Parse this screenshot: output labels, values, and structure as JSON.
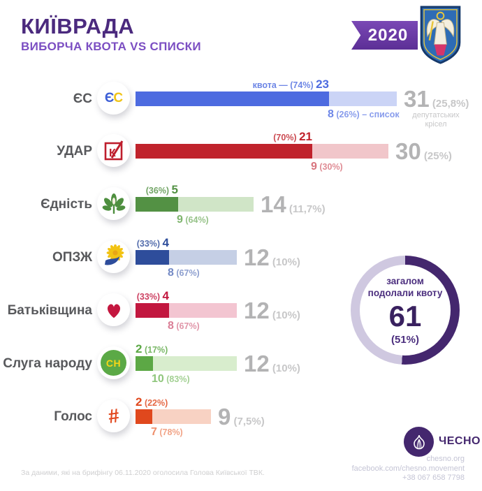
{
  "header": {
    "title": "КИЇВРАДА",
    "subtitle": "ВИБОРЧА КВОТА VS СПИСКИ",
    "year": "2020",
    "emblem": "kyiv-coat-of-arms"
  },
  "colors": {
    "title_purple": "#4B2A7E",
    "subtitle_purple": "#7B4EC2",
    "ribbon_purple": "#63359F",
    "donut_dark": "#44276E",
    "donut_light": "#CFC8E0",
    "total_gray": "#B3B3B4"
  },
  "rows": [
    {
      "party": "ЄС",
      "logo": "es-party-logo",
      "seats": 31,
      "quota_pct_value": 74,
      "top_align": "end",
      "color_dark": "#4D6BE0",
      "color_light": "#CBD4F6",
      "color_mid": "#6E87E8",
      "top_parts": [
        {
          "text": "квота — (74%) ",
          "big": false
        },
        {
          "text": "23",
          "big": true
        }
      ],
      "bottom_parts": [
        {
          "text": "8",
          "big": true
        },
        {
          "text": " (26%) – список",
          "big": false
        }
      ],
      "total": "31",
      "total_pct": "(25,8%)",
      "note": "депутатських крісел"
    },
    {
      "party": "УДАР",
      "logo": "udar-party-logo",
      "seats": 30,
      "quota_pct_value": 70,
      "top_align": "end",
      "color_dark": "#C0232C",
      "color_light": "#F1C6CA",
      "color_mid": "#D8747E",
      "top_parts": [
        {
          "text": "(70%) ",
          "big": false
        },
        {
          "text": "21",
          "big": true
        }
      ],
      "bottom_parts": [
        {
          "text": "9",
          "big": true
        },
        {
          "text": " (30%)",
          "big": false
        }
      ],
      "total": "30",
      "total_pct": "(25%)",
      "note": ""
    },
    {
      "party": "Єдність",
      "logo": "chestnut-leaf-logo",
      "seats": 14,
      "quota_pct_value": 36,
      "top_align": "end",
      "color_dark": "#539144",
      "color_light": "#D0E5C7",
      "color_mid": "#7FB56E",
      "top_parts": [
        {
          "text": "(36%) ",
          "big": false
        },
        {
          "text": "5",
          "big": true
        }
      ],
      "bottom_parts": [
        {
          "text": "9",
          "big": true
        },
        {
          "text": " (64%)",
          "big": false
        }
      ],
      "total": "14",
      "total_pct": "(11,7%)",
      "note": ""
    },
    {
      "party": "ОПЗЖ",
      "logo": "sunflower-logo",
      "seats": 12,
      "quota_pct_value": 33,
      "top_align": "end",
      "color_dark": "#2E4D9B",
      "color_light": "#C5CFE5",
      "color_mid": "#7389C4",
      "top_parts": [
        {
          "text": "(33%) ",
          "big": false
        },
        {
          "text": "4",
          "big": true
        }
      ],
      "bottom_parts": [
        {
          "text": "8",
          "big": true
        },
        {
          "text": " (67%)",
          "big": false
        }
      ],
      "total": "12",
      "total_pct": "(10%)",
      "note": ""
    },
    {
      "party": "Батьківщина",
      "logo": "heart-logo",
      "seats": 12,
      "quota_pct_value": 33,
      "top_align": "end",
      "color_dark": "#C2173F",
      "color_light": "#F3C5D1",
      "color_mid": "#DA7E96",
      "top_parts": [
        {
          "text": "(33%) ",
          "big": false
        },
        {
          "text": "4",
          "big": true
        }
      ],
      "bottom_parts": [
        {
          "text": "8",
          "big": true
        },
        {
          "text": " (67%)",
          "big": false
        }
      ],
      "total": "12",
      "total_pct": "(10%)",
      "note": ""
    },
    {
      "party": "Слуга народу",
      "logo": "sn-party-logo",
      "seats": 12,
      "quota_pct_value": 17,
      "top_align": "start",
      "color_dark": "#5CA845",
      "color_light": "#D8EDCD",
      "color_mid": "#8FC67C",
      "top_parts": [
        {
          "text": "2",
          "big": true
        },
        {
          "text": " (17%)",
          "big": false
        }
      ],
      "bottom_parts": [
        {
          "text": "10",
          "big": true
        },
        {
          "text": " (83%)",
          "big": false
        }
      ],
      "total": "12",
      "total_pct": "(10%)",
      "note": ""
    },
    {
      "party": "Голос",
      "logo": "hashtag-logo",
      "seats": 9,
      "quota_pct_value": 22,
      "top_align": "start",
      "color_dark": "#E0481D",
      "color_light": "#F8D2C3",
      "color_mid": "#EE8F6C",
      "top_parts": [
        {
          "text": "2",
          "big": true
        },
        {
          "text": " (22%)",
          "big": false
        }
      ],
      "bottom_parts": [
        {
          "text": "7",
          "big": true
        },
        {
          "text": " (78%)",
          "big": false
        }
      ],
      "total": "9",
      "total_pct": "(7,5%)",
      "note": ""
    }
  ],
  "donut": {
    "label_line1": "загалом",
    "label_line2": "подолали квоту",
    "value": "61",
    "pct": "(51%)",
    "pct_value": 51
  },
  "chesno": {
    "name": "ЧЕСНО",
    "logo": "garlic-logo"
  },
  "footer": {
    "source": "За даними, які на брифінгу 06.11.2020 оголосила Голова Київської ТВК.",
    "site": "chesno.org",
    "facebook": "facebook.com/chesno.movement",
    "phone": "+38 067 658 7798"
  },
  "chart_data": {
    "type": "bar",
    "orientation": "horizontal",
    "title": "КИЇВРАДА — ВИБОРЧА КВОТА VS СПИСКИ (2020)",
    "categories": [
      "ЄС",
      "УДАР",
      "Єдність",
      "ОПЗЖ",
      "Батьківщина",
      "Слуга народу",
      "Голос"
    ],
    "series": [
      {
        "name": "квота",
        "values": [
          23,
          21,
          5,
          4,
          4,
          2,
          2
        ],
        "pct_labels": [
          "74%",
          "70%",
          "36%",
          "33%",
          "33%",
          "17%",
          "22%"
        ]
      },
      {
        "name": "список",
        "values": [
          8,
          9,
          9,
          8,
          8,
          10,
          7
        ],
        "pct_labels": [
          "26%",
          "30%",
          "64%",
          "67%",
          "67%",
          "83%",
          "78%"
        ]
      }
    ],
    "totals": {
      "values": [
        31,
        30,
        14,
        12,
        12,
        12,
        9
      ],
      "pct_labels": [
        "25,8%",
        "25%",
        "11,7%",
        "10%",
        "10%",
        "10%",
        "7,5%"
      ],
      "unit": "депутатських крісел"
    },
    "annotation": {
      "label": "загалом подолали квоту",
      "value": 61,
      "pct": "51%"
    },
    "legend_position": "inline-first-bar",
    "grid": false
  }
}
